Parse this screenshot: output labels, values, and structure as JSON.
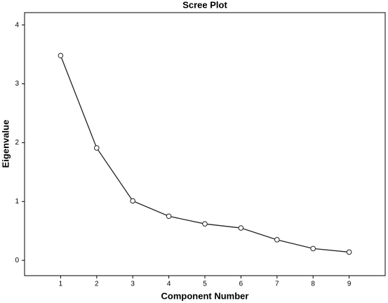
{
  "chart_data": {
    "type": "line",
    "title": "Scree Plot",
    "x_label": "Component Number",
    "y_label": "Eigenvalue",
    "x": [
      1,
      2,
      3,
      4,
      5,
      6,
      7,
      8,
      9
    ],
    "values": [
      3.48,
      1.91,
      1.01,
      0.75,
      0.62,
      0.55,
      0.35,
      0.2,
      0.14
    ],
    "color": "#222222",
    "marker": "open-circle",
    "xlim": [
      0,
      10
    ],
    "xticks": [
      1,
      2,
      3,
      4,
      5,
      6,
      7,
      8,
      9
    ],
    "ylim": [
      -0.26,
      4.21
    ],
    "yticks": [
      0,
      1,
      2,
      3,
      4
    ],
    "grid": false
  }
}
